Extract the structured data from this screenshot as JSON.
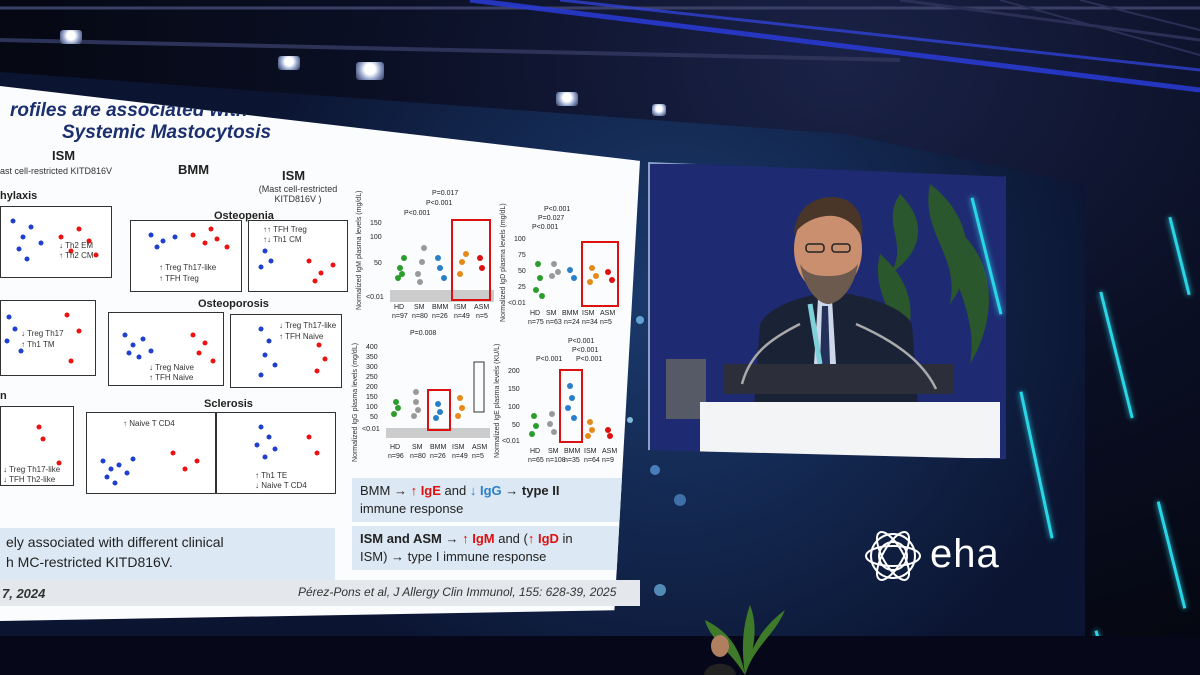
{
  "slide": {
    "title_line1": "rofiles are associated with the clinical manifestations of",
    "title_line2": "Systemic Mastocytosis",
    "columns": {
      "ism_left": "ISM",
      "ism_left_sub": "ast cell-restricted KITD816V",
      "bmm": "BMM",
      "ism_right": "ISM",
      "ism_right_sub": "(Mast cell-restricted KITD816V )"
    },
    "rows": {
      "row1": "hylaxis",
      "row2": "Osteopenia",
      "row3": "Osteoporosis",
      "row4": "n",
      "row5": "Sclerosis"
    },
    "panel_labels": {
      "p1a": "↓ Th2 EM",
      "p1b": "↑ Th2 CM",
      "p2a": "↑ Treg Th17-like",
      "p2b": "↑ TFH Treg",
      "p3a": "↑↑ TFH Treg",
      "p3b": "↑↓ Th1 CM",
      "p4a": "↓ Treg Th17",
      "p4b": "↑ Th1 TM",
      "p5a": "↓ Treg Naive",
      "p5b": "↑ TFH Naive",
      "p6a": "↓ Treg Th17-like",
      "p6b": "↑ TFH Naive",
      "p7a": "↓ Treg Th17-like",
      "p7b": "↓ TFH Th2-like",
      "p8a": "↑ Naive T CD4",
      "p9a": "↑ Th1 TE",
      "p9b": "↓ Naive T CD4"
    },
    "plots": {
      "igm": {
        "ylabel": "Normalized IgM plasma levels (mg/dL)",
        "pvals": [
          "P=0.017",
          "P<0.001",
          "P<0.001"
        ],
        "groups": [
          "HD",
          "SM",
          "BMM",
          "ISM",
          "ASM"
        ],
        "ns": [
          "n=97",
          "n=80",
          "n=26",
          "n=49",
          "n=5"
        ],
        "yticks": [
          "150",
          "100",
          "50",
          "<0.01"
        ]
      },
      "igd": {
        "ylabel": "Normalized IgD plasma levels (mg/dL)",
        "pvals": [
          "P<0.001",
          "P=0.027",
          "P<0.001"
        ],
        "groups": [
          "HD",
          "SM",
          "BMM",
          "ISM",
          "ASM"
        ],
        "ns": [
          "n=75",
          "n=63",
          "n=24",
          "n=34",
          "n=5"
        ],
        "yticks": [
          "100",
          "75",
          "50",
          "25",
          "<0.01"
        ]
      },
      "igg": {
        "ylabel": "Normalized IgG plasma levels (mg/dL)",
        "pvals": [
          "P=0.008"
        ],
        "groups": [
          "HD",
          "SM",
          "BMM",
          "ISM",
          "ASM"
        ],
        "ns": [
          "n=96",
          "n=80",
          "n=26",
          "n=49",
          "n=5"
        ],
        "yticks": [
          "400",
          "350",
          "300",
          "250",
          "200",
          "150",
          "100",
          "50",
          "<0.01"
        ]
      },
      "ige": {
        "ylabel": "Normalized IgE plasma levels (KU/L)",
        "pvals": [
          "P<0.001",
          "P<0.001",
          "P<0.001",
          "P<0.001"
        ],
        "groups": [
          "HD",
          "SM",
          "BMM",
          "ISM",
          "ASM"
        ],
        "ns": [
          "n=65",
          "n=108",
          "n=35",
          "n=64",
          "n=9"
        ],
        "yticks": [
          "200",
          "150",
          "100",
          "50",
          "<0.01"
        ]
      }
    },
    "summary": {
      "line1_prefix": "BMM →",
      "line1_ige": "↑ IgE",
      "line1_and": "and",
      "line1_igg": "↓ IgG",
      "line1_suffix": "→ type II",
      "line1_tail": "immune response",
      "line2_prefix": "ISM and ASM →",
      "line2_igm": "↑ IgM",
      "line2_and": "and (",
      "line2_igd": "↑ IgD",
      "line2_in": "in",
      "line2_tail": "ISM) → type I immune response"
    },
    "left_note_line1": "ely associated with different clinical",
    "left_note_line2": "h MC-restricted KITD816V.",
    "cite_left": "7, 2024",
    "cite_right": "Pérez-Pons et al, J Allergy Clin Immunol, 155: 628-39, 2025"
  },
  "branding": {
    "logo_text": "eha"
  },
  "colors": {
    "accent_cyan": "#29d5e6",
    "title_navy": "#1b2f6e",
    "highlight_red": "#d11111",
    "highlight_blue": "#2a7fc9"
  }
}
